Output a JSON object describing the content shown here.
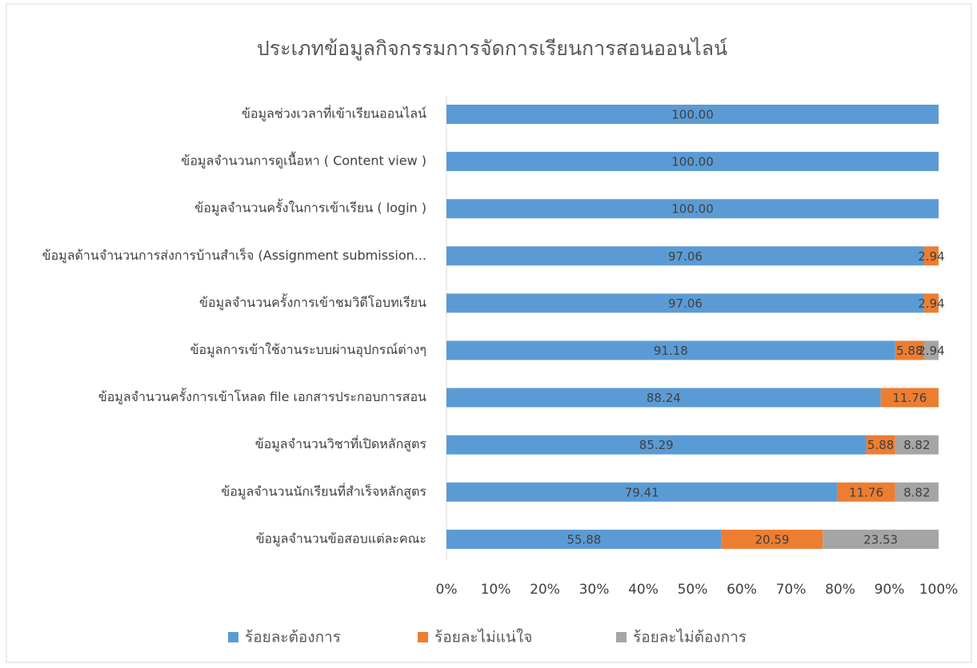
{
  "chart_data": {
    "type": "stacked_bar_horizontal",
    "title": "ประเภทข้อมูลกิจกรรมการจัดการเรียนการสอนออนไลน์",
    "categories": [
      "ข้อมูลช่วงเวลาที่เข้าเรียนออนไลน์",
      "ข้อมูลจำนวนการดูเนื้อหา ( Content view )",
      "ข้อมูลจำนวนครั้งในการเข้าเรียน ( login )",
      "ข้อมูลด้านจำนวนการส่งการบ้านสำเร็จ (Assignment submission...",
      "ข้อมูลจำนวนครั้งการเข้าชมวิดีโอบทเรียน",
      "ข้อมูลการเข้าใช้งานระบบผ่านอุปกรณ์ต่างๆ",
      "ข้อมูลจำนวนครั้งการเข้าโหลด file เอกสารประกอบการสอน",
      "ข้อมูลจำนวนวิชาที่เปิดหลักสูตร",
      "ข้อมูลจำนวนนักเรียนที่สำเร็จหลักสูตร",
      "ข้อมูลจำนวนข้อสอบแต่ละคณะ"
    ],
    "series": [
      {
        "name": "ร้อยละต้องการ",
        "color": "#5b9bd5",
        "values": [
          100,
          100,
          100,
          97.06,
          97.06,
          91.18,
          88.24,
          85.29,
          79.41,
          55.88
        ],
        "value_labels": [
          "100.00",
          "100.00",
          "100.00",
          "97.06",
          "97.06",
          "91.18",
          "88.24",
          "85.29",
          "79.41",
          "55.88"
        ]
      },
      {
        "name": "ร้อยละไม่แน่ใจ",
        "color": "#ed7d31",
        "values": [
          0,
          0,
          0,
          2.94,
          2.94,
          5.88,
          11.76,
          5.88,
          11.76,
          20.59
        ],
        "value_labels": [
          null,
          null,
          null,
          "2.94",
          "2.94",
          "5.88",
          "11.76",
          "5.88",
          "11.76",
          "20.59"
        ]
      },
      {
        "name": "ร้อยละไม่ต้องการ",
        "color": "#a5a5a5",
        "values": [
          0,
          0,
          0,
          0,
          0,
          2.94,
          0,
          8.82,
          8.82,
          23.53
        ],
        "value_labels": [
          null,
          null,
          null,
          null,
          null,
          "2.94",
          null,
          "8.82",
          "8.82",
          "23.53"
        ]
      }
    ],
    "xlim": [
      0,
      100
    ],
    "xticks": [
      {
        "value": 0,
        "label": "0%"
      },
      {
        "value": 10,
        "label": "10%"
      },
      {
        "value": 20,
        "label": "20%"
      },
      {
        "value": 30,
        "label": "30%"
      },
      {
        "value": 40,
        "label": "40%"
      },
      {
        "value": 50,
        "label": "50%"
      },
      {
        "value": 60,
        "label": "60%"
      },
      {
        "value": 70,
        "label": "70%"
      },
      {
        "value": 80,
        "label": "80%"
      },
      {
        "value": 90,
        "label": "90%"
      },
      {
        "value": 100,
        "label": "100%"
      }
    ],
    "grid": false,
    "legend": "bottom"
  }
}
